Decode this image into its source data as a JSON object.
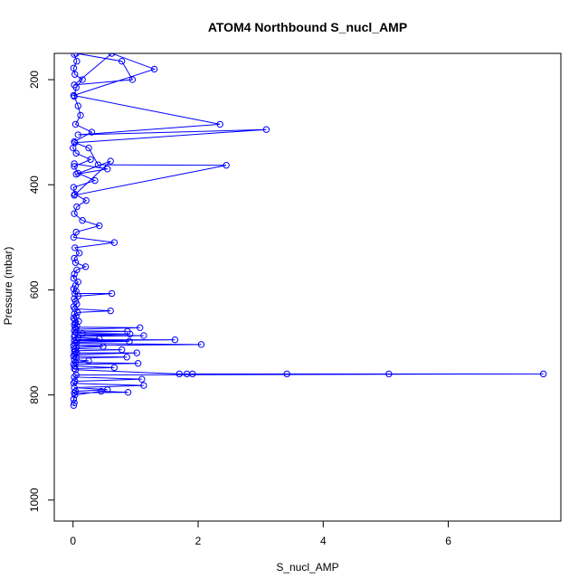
{
  "chart_data": {
    "type": "line",
    "title": "ATOM4 Northbound S_nucl_AMP",
    "xlabel": "S_nucl_AMP",
    "ylabel": "Pressure (mbar)",
    "xlim": [
      -0.3,
      7.8
    ],
    "ylim": [
      1040,
      150
    ],
    "y_reversed": true,
    "xticks": [
      0,
      2,
      4,
      6
    ],
    "yticks": [
      200,
      400,
      600,
      800,
      1000
    ],
    "grid": false,
    "marker": "open-circle",
    "color": "#0000ff",
    "series": [
      {
        "x": [
          0.02,
          0.06,
          0.01,
          0.03,
          0.15,
          0.05,
          0.02,
          0.08,
          0.12,
          0.04,
          0.3,
          0.02,
          0.0,
          0.05,
          0.28,
          0.02,
          0.08,
          0.35,
          0.01,
          0.03,
          0.21,
          0.06,
          0.02,
          0.15,
          0.42,
          0.05,
          0.01,
          0.66,
          0.03,
          0.1,
          0.02,
          0.04,
          0.2,
          0.06,
          0.02,
          0.01,
          0.08,
          0.04,
          0.01,
          0.05,
          0.03,
          0.62,
          0.08,
          0.02,
          0.04,
          0.06,
          0.01,
          0.03,
          0.6,
          0.07,
          0.02,
          0.05,
          0.01,
          0.03,
          0.09,
          0.04,
          0.02,
          0.06,
          0.03,
          1.07,
          0.05,
          0.02,
          0.87,
          0.04,
          0.15,
          0.91,
          0.03,
          1.13,
          0.02,
          0.08,
          0.42,
          0.05,
          1.63,
          0.02,
          0.9,
          0.06,
          0.03,
          2.05,
          0.01,
          0.48,
          0.05,
          0.02,
          0.78,
          0.04,
          0.02,
          0.06,
          1.02,
          0.03,
          0.01,
          0.86,
          0.05,
          0.02,
          0.25,
          0.04,
          1.04,
          0.01,
          0.03,
          0.66,
          0.02,
          0.04,
          1.7,
          1.82,
          1.91,
          3.42,
          5.05,
          7.52,
          0.05,
          0.02,
          1.1,
          0.03,
          0.01,
          1.13,
          0.02,
          0.55,
          0.04,
          0.02,
          0.88,
          0.45,
          0.03,
          0.01,
          0.02,
          0.01
        ],
        "y": [
          152,
          165,
          178,
          190,
          200,
          215,
          232,
          250,
          268,
          285,
          300,
          318,
          330,
          340,
          352,
          365,
          378,
          392,
          405,
          418,
          430,
          442,
          455,
          468,
          478,
          490,
          500,
          510,
          520,
          530,
          540,
          548,
          556,
          562,
          570,
          578,
          585,
          592,
          598,
          603,
          607,
          607,
          612,
          617,
          622,
          627,
          632,
          636,
          640,
          643,
          646,
          650,
          654,
          657,
          660,
          663,
          666,
          669,
          671,
          672,
          675,
          678,
          679,
          681,
          683,
          684,
          686,
          687,
          689,
          691,
          693,
          695,
          695,
          697,
          698,
          700,
          702,
          704,
          706,
          708,
          710,
          712,
          714,
          716,
          718,
          720,
          720,
          723,
          726,
          728,
          730,
          733,
          735,
          738,
          740,
          742,
          745,
          748,
          750,
          752,
          760,
          760,
          760,
          760,
          760,
          760,
          762,
          766,
          770,
          774,
          778,
          782,
          786,
          790,
          793,
          796,
          795,
          793,
          800,
          808,
          815,
          820
        ]
      },
      {
        "x": [
          0.05,
          0.78,
          0.95,
          0.02,
          0.62,
          1.3,
          0.01,
          2.35,
          0.08,
          3.09,
          0.03,
          0.25,
          0.4,
          2.45,
          0.02,
          0.6,
          0.05,
          0.55,
          0.02
        ],
        "y": [
          150,
          165,
          200,
          210,
          150,
          180,
          230,
          285,
          305,
          295,
          320,
          330,
          362,
          363,
          420,
          355,
          380,
          370,
          360
        ]
      }
    ]
  }
}
